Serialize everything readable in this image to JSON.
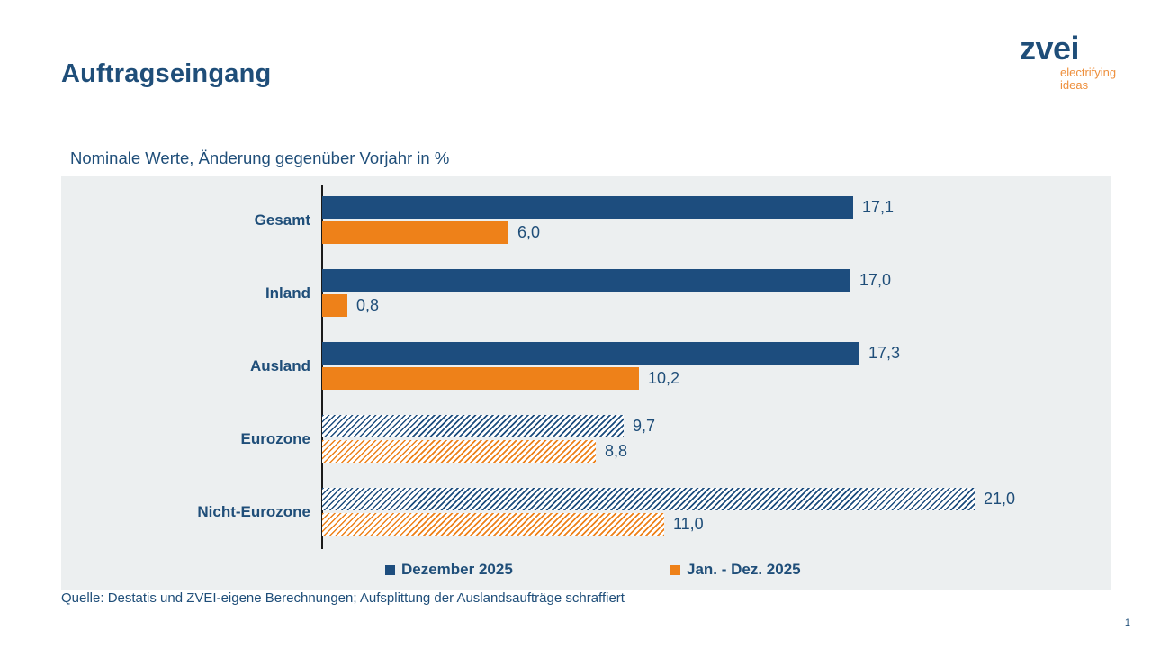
{
  "page": {
    "title": "Auftragseingang",
    "page_number": "1"
  },
  "logo": {
    "wordmark": "zvei",
    "tagline": "electrifying\nideas"
  },
  "subtitle": "Nominale Werte, Änderung gegenüber Vorjahr in %",
  "footer": {
    "source": "Quelle: Destatis und ZVEI-eigene Berechnungen; Aufsplittung der Auslandsaufträge schraffiert"
  },
  "colors": {
    "blue": "#1D4D7E",
    "orange": "#EE8119",
    "text_blue": "#1F4E79",
    "chart_bg": "#ECEFF0"
  },
  "chart_data": {
    "type": "bar",
    "orientation": "horizontal",
    "title": "Auftragseingang",
    "subtitle": "Nominale Werte, Änderung gegenüber Vorjahr in %",
    "categories": [
      "Gesamt",
      "Inland",
      "Ausland",
      "Eurozone",
      "Nicht-Eurozone"
    ],
    "hatched_categories": [
      "Eurozone",
      "Nicht-Eurozone"
    ],
    "series": [
      {
        "name": "Dezember 2025",
        "color": "#1D4D7E",
        "values": [
          17.1,
          17.0,
          17.3,
          9.7,
          21.0
        ],
        "labels": [
          "17,1",
          "17,0",
          "17,3",
          "9,7",
          "21,0"
        ]
      },
      {
        "name": "Jan. - Dez. 2025",
        "color": "#EE8119",
        "values": [
          6.0,
          0.8,
          10.2,
          8.8,
          11.0
        ],
        "labels": [
          "6,0",
          "0,8",
          "10,2",
          "8,8",
          "11,0"
        ]
      }
    ],
    "xlim": [
      0,
      25
    ],
    "value_axis_visible": false,
    "grid": false,
    "legend_position": "bottom",
    "note": "Aufsplittung der Auslandsaufträge schraffiert (hatched)"
  }
}
